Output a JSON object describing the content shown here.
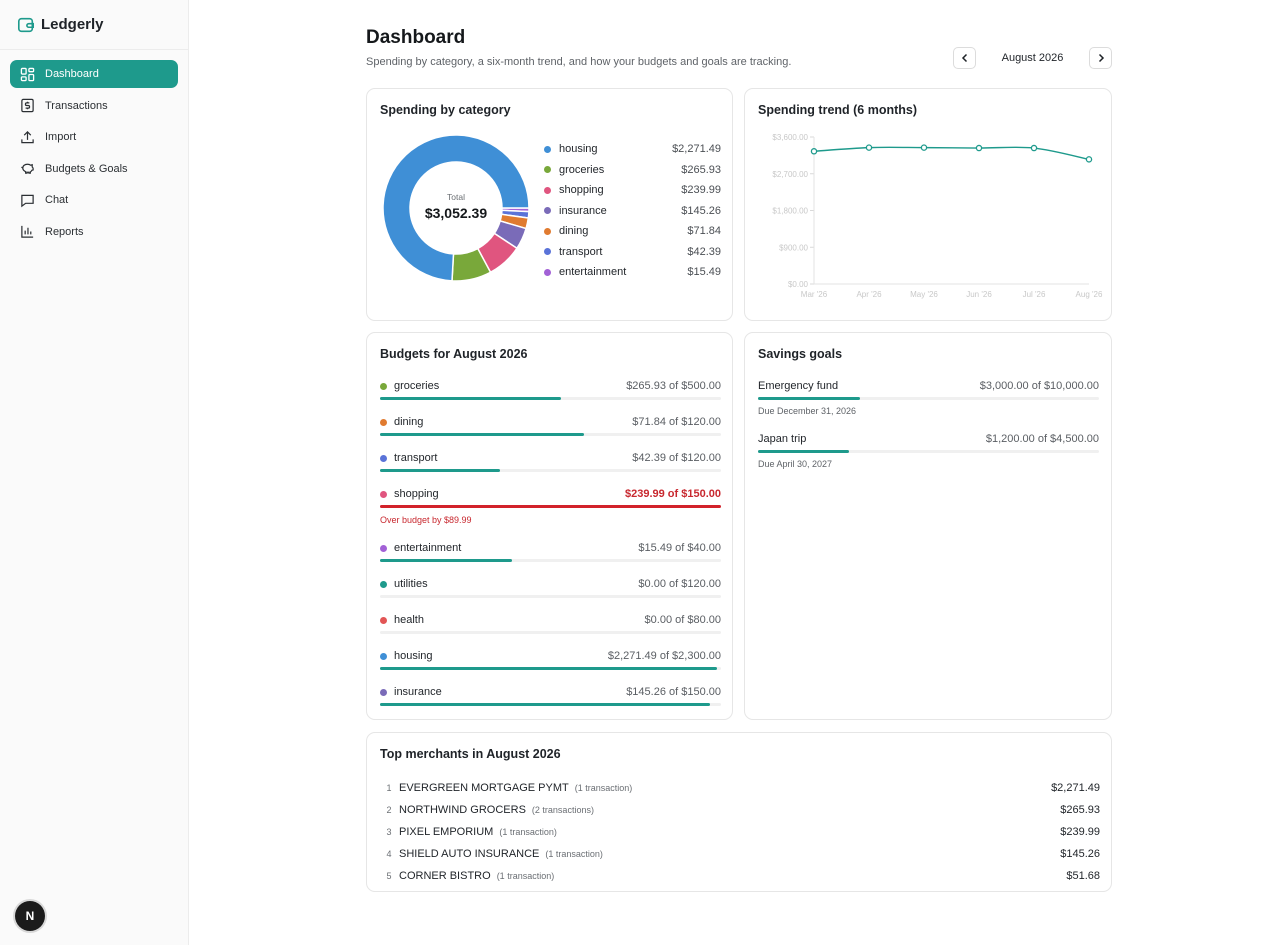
{
  "app": {
    "name": "Ledgerly"
  },
  "nav": [
    {
      "label": "Dashboard",
      "icon": "grid-icon",
      "active": true
    },
    {
      "label": "Transactions",
      "icon": "dollar-icon"
    },
    {
      "label": "Import",
      "icon": "upload-icon"
    },
    {
      "label": "Budgets & Goals",
      "icon": "piggy-bank-icon"
    },
    {
      "label": "Chat",
      "icon": "chat-icon"
    },
    {
      "label": "Reports",
      "icon": "bar-chart-icon"
    }
  ],
  "footer_badge": "N",
  "header": {
    "title": "Dashboard",
    "subtitle": "Spending by category, a six-month trend, and how your budgets and goals are tracking.",
    "month": "August 2026"
  },
  "category_card": {
    "title": "Spending by category",
    "total_label": "Total",
    "total_value": "$3,052.39"
  },
  "trend_card": {
    "title": "Spending trend (6 months)"
  },
  "budgets": {
    "title": "Budgets for August 2026",
    "items": [
      {
        "name": "groceries",
        "amount": "$265.93 of $500.00",
        "color": "#79a83a",
        "progress": 0.532
      },
      {
        "name": "dining",
        "amount": "$71.84 of $120.00",
        "color": "#e07b30",
        "progress": 0.599
      },
      {
        "name": "transport",
        "amount": "$42.39 of $120.00",
        "color": "#5a73d8",
        "progress": 0.353
      },
      {
        "name": "shopping",
        "amount": "$239.99 of $150.00",
        "color": "#e0557f",
        "progress": 1.0,
        "over": true,
        "note": "Over budget by $89.99"
      },
      {
        "name": "entertainment",
        "amount": "$15.49 of $40.00",
        "color": "#a261d6",
        "progress": 0.387
      },
      {
        "name": "utilities",
        "amount": "$0.00 of $120.00",
        "color": "#1e9a8c",
        "progress": 0
      },
      {
        "name": "health",
        "amount": "$0.00 of $80.00",
        "color": "#e25555",
        "progress": 0
      },
      {
        "name": "housing",
        "amount": "$2,271.49 of $2,300.00",
        "color": "#3f8fd6",
        "progress": 0.988
      },
      {
        "name": "insurance",
        "amount": "$145.26 of $150.00",
        "color": "#7a6bb8",
        "progress": 0.968
      }
    ]
  },
  "savings": {
    "title": "Savings goals",
    "goals": [
      {
        "name": "Emergency fund",
        "amount": "$3,000.00 of $10,000.00",
        "due": "Due December 31, 2026",
        "progress": 0.3
      },
      {
        "name": "Japan trip",
        "amount": "$1,200.00 of $4,500.00",
        "due": "Due April 30, 2027",
        "progress": 0.267
      }
    ]
  },
  "merchants": {
    "title": "Top merchants in August 2026",
    "items": [
      {
        "rank": "1",
        "name": "EVERGREEN MORTGAGE PYMT",
        "count": "(1 transaction)",
        "amount": "$2,271.49"
      },
      {
        "rank": "2",
        "name": "NORTHWIND GROCERS",
        "count": "(2 transactions)",
        "amount": "$265.93"
      },
      {
        "rank": "3",
        "name": "PIXEL EMPORIUM",
        "count": "(1 transaction)",
        "amount": "$239.99"
      },
      {
        "rank": "4",
        "name": "SHIELD AUTO INSURANCE",
        "count": "(1 transaction)",
        "amount": "$145.26"
      },
      {
        "rank": "5",
        "name": "CORNER BISTRO",
        "count": "(1 transaction)",
        "amount": "$51.68"
      }
    ]
  },
  "chart_data": [
    {
      "type": "pie",
      "categories": [
        "housing",
        "groceries",
        "shopping",
        "insurance",
        "dining",
        "transport",
        "entertainment"
      ],
      "values": [
        2271.49,
        265.93,
        239.99,
        145.26,
        71.84,
        42.39,
        15.49
      ],
      "labels": [
        "$2,271.49",
        "$265.93",
        "$239.99",
        "$145.26",
        "$71.84",
        "$42.39",
        "$15.49"
      ],
      "colors": [
        "#3f8fd6",
        "#79a83a",
        "#e0557f",
        "#7a6bb8",
        "#e07b30",
        "#5a73d8",
        "#a261d6"
      ]
    },
    {
      "type": "line",
      "x": [
        "Mar '26",
        "Apr '26",
        "May '26",
        "Jun '26",
        "Jul '26",
        "Aug '26"
      ],
      "values": [
        3250,
        3340,
        3340,
        3330,
        3330,
        3052.39
      ],
      "ylim": [
        0,
        3600
      ],
      "yticks": [
        0,
        900,
        1800,
        2700,
        3600
      ],
      "ytick_labels": [
        "$0.00",
        "$900.00",
        "$1,800.00",
        "$2,700.00",
        "$3,600.00"
      ],
      "color": "#1e9a8c"
    }
  ]
}
